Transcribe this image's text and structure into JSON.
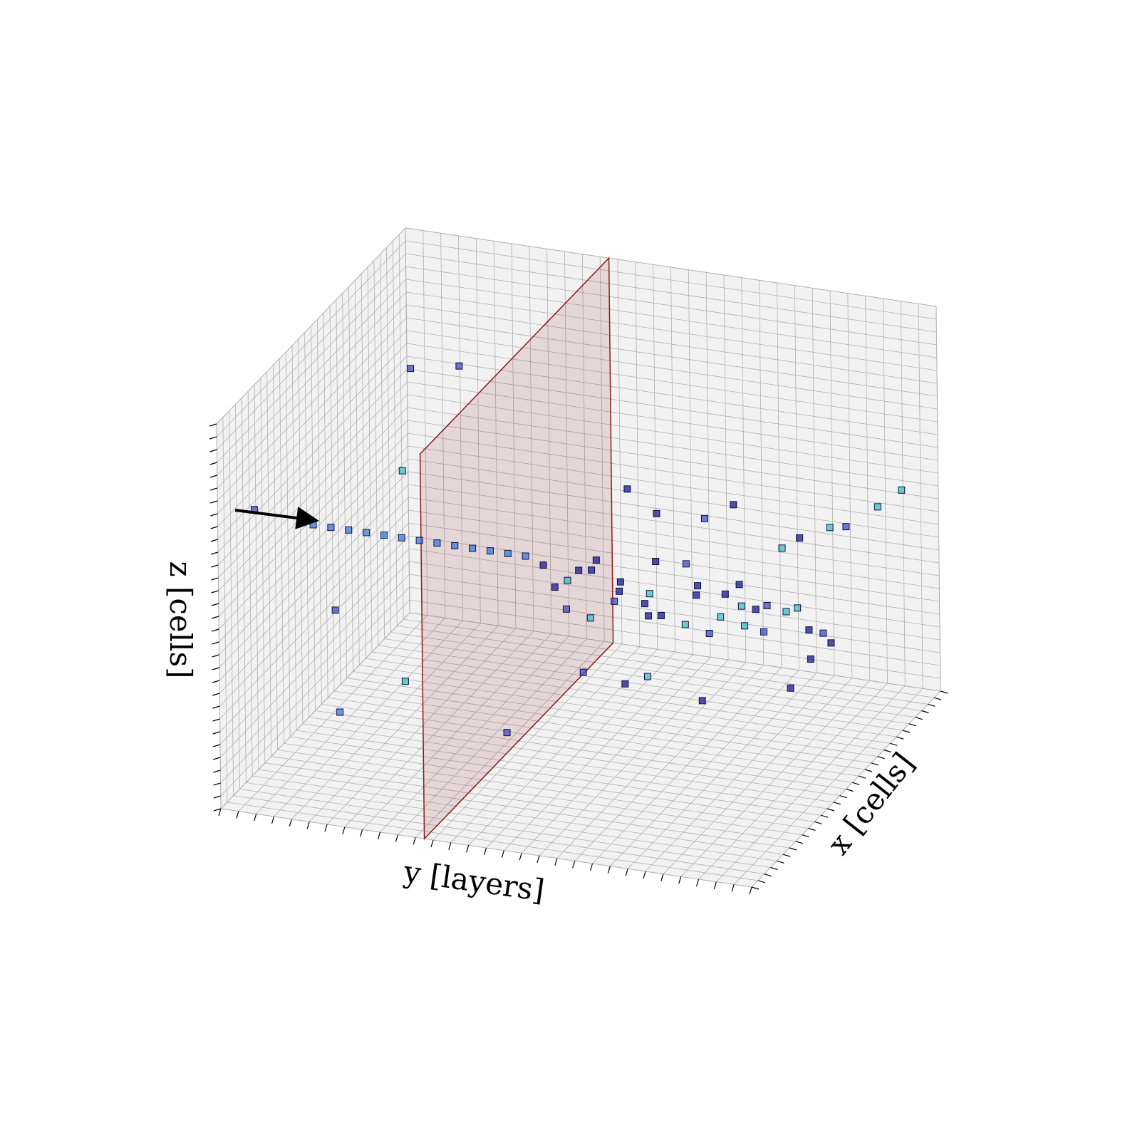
{
  "chart_data": {
    "type": "scatter3d",
    "xlabel": "x [cells]",
    "ylabel": "y [layers]",
    "zlabel": "z [cells]",
    "xlim": [
      0,
      30
    ],
    "ylim": [
      0,
      30
    ],
    "zlim": [
      0,
      30
    ],
    "xticks": [
      0,
      1,
      2,
      3,
      4,
      5,
      6,
      7,
      8,
      9,
      10,
      11,
      12,
      13,
      14,
      15,
      16,
      17,
      18,
      19,
      20,
      21,
      22,
      23,
      24,
      25,
      26,
      27,
      28,
      29,
      30
    ],
    "yticks": [
      0,
      1,
      2,
      3,
      4,
      5,
      6,
      7,
      8,
      9,
      10,
      11,
      12,
      13,
      14,
      15,
      16,
      17,
      18,
      19,
      20,
      21,
      22,
      23,
      24,
      25,
      26,
      27,
      28,
      29,
      30
    ],
    "zticks": [
      0,
      1,
      2,
      3,
      4,
      5,
      6,
      7,
      8,
      9,
      10,
      11,
      12,
      13,
      14,
      15,
      16,
      17,
      18,
      19,
      20,
      21,
      22,
      23,
      24,
      25,
      26,
      27,
      28,
      29,
      30
    ],
    "grid": true,
    "highlight_layer": 11.5,
    "highlight_color": "#8b1a1a",
    "x": [
      15,
      15,
      15,
      15,
      15,
      15,
      15,
      15,
      15,
      15,
      15,
      15,
      15,
      15,
      14,
      16,
      15,
      13,
      17,
      15,
      14,
      16,
      15,
      13,
      17,
      15,
      16,
      14,
      18,
      12,
      15,
      17,
      14,
      16,
      15,
      18,
      13,
      16,
      15,
      17,
      14,
      16,
      15,
      20,
      10,
      19,
      11,
      21,
      9,
      20,
      12,
      19,
      22,
      10,
      18,
      21,
      12,
      22,
      24,
      26,
      27,
      16,
      25,
      18,
      3,
      10,
      7,
      5,
      9,
      20,
      24
    ],
    "y": [
      0,
      1,
      2,
      3,
      4,
      5,
      6,
      7,
      8,
      9,
      10,
      11,
      12,
      13,
      14,
      14,
      15,
      15,
      15,
      16,
      16,
      17,
      17,
      18,
      18,
      19,
      19,
      20,
      20,
      20,
      21,
      21,
      22,
      22,
      23,
      23,
      24,
      24,
      25,
      26,
      26,
      27,
      28,
      16,
      17,
      18,
      19,
      20,
      21,
      22,
      23,
      24,
      25,
      26,
      27,
      28,
      28,
      24,
      26,
      28,
      29,
      8,
      2,
      4,
      1,
      3,
      8,
      5,
      13,
      27,
      26
    ],
    "z": [
      14.5,
      14.5,
      14.5,
      14.5,
      14.5,
      14.5,
      14.5,
      14.5,
      14.5,
      14.5,
      14.5,
      14.5,
      14.5,
      14,
      13,
      12.5,
      14,
      12,
      13,
      15,
      11,
      13,
      12,
      14,
      11,
      13,
      15,
      12,
      14,
      13,
      11,
      13,
      14,
      10,
      12,
      13,
      15,
      11,
      13,
      12,
      14,
      13,
      12,
      18,
      9,
      17,
      8,
      16,
      10,
      18,
      7,
      9,
      15,
      16,
      8,
      17,
      9,
      14,
      15,
      16,
      17,
      28,
      22,
      18,
      22,
      11,
      8,
      6,
      4,
      9,
      6
    ],
    "colors": [
      "#3a7bd5",
      "#3a7bd5",
      "#3a7bd5",
      "#3a7bd5",
      "#3a7bd5",
      "#3a7bd5",
      "#3a7bd5",
      "#3a7bd5",
      "#3a7bd5",
      "#3a7bd5",
      "#3a7bd5",
      "#3a7bd5",
      "#3a7bd5",
      "#1a1a8c",
      "#1a1a8c",
      "#3fbfbf",
      "#1a1a8c",
      "#3f4fc4",
      "#1a1a8c",
      "#1a1a8c",
      "#3fbfbf",
      "#1a1a8c",
      "#3f4fc4",
      "#1a1a8c",
      "#1a1a8c",
      "#3fbfbf",
      "#1a1a8c",
      "#1a1a8c",
      "#3f4fc4",
      "#1a1a8c",
      "#3fbfbf",
      "#1a1a8c",
      "#1a1a8c",
      "#3f4fc4",
      "#3fbfbf",
      "#1a1a8c",
      "#1a1a8c",
      "#3fbfbf",
      "#1a1a8c",
      "#3fbfbf",
      "#3f4fc4",
      "#3fbfbf",
      "#1a1a8c",
      "#1a1a8c",
      "#3f4fc4",
      "#1a1a8c",
      "#1a1a8c",
      "#3f4fc4",
      "#3fbfbf",
      "#1a1a8c",
      "#1a1a8c",
      "#3f4fc4",
      "#1a1a8c",
      "#3fbfbf",
      "#1a1a8c",
      "#3f4fc4",
      "#1a1a8c",
      "#3fbfbf",
      "#3fbfbf",
      "#3fbfbf",
      "#3fbfbf",
      "#3f4fc4",
      "#3f4fc4",
      "#3fbfbf",
      "#3f4fc4",
      "#3f4fc4",
      "#3fbfbf",
      "#3a7bd5",
      "#3f4fc4",
      "#3f4fc4",
      "#1a1a8c"
    ]
  }
}
